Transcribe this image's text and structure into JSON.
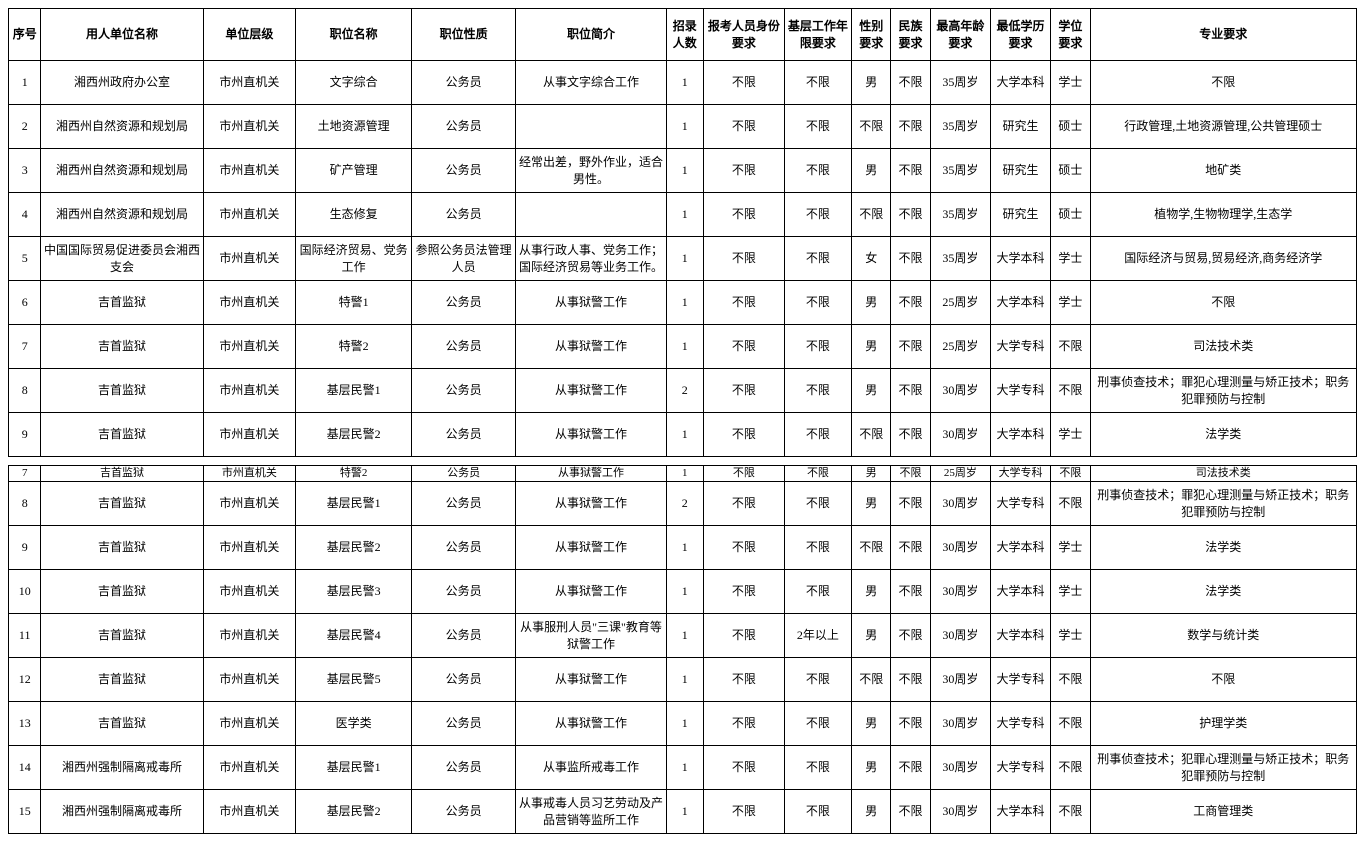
{
  "headers": {
    "seq": "序号",
    "unit": "用人单位名称",
    "level": "单位层级",
    "pos": "职位名称",
    "nat": "职位性质",
    "desc": "职位简介",
    "num": "招录人数",
    "app": "报考人员身份要求",
    "exp": "基层工作年限要求",
    "sex": "性别要求",
    "eth": "民族要求",
    "age": "最高年龄要求",
    "edu": "最低学历要求",
    "deg": "学位要求",
    "maj": "专业要求"
  },
  "tables": [
    {
      "rows": [
        {
          "seq": "1",
          "unit": "湘西州政府办公室",
          "level": "市州直机关",
          "pos": "文字综合",
          "nat": "公务员",
          "desc": "从事文字综合工作",
          "num": "1",
          "app": "不限",
          "exp": "不限",
          "sex": "男",
          "eth": "不限",
          "age": "35周岁",
          "edu": "大学本科",
          "deg": "学士",
          "maj": "不限"
        },
        {
          "seq": "2",
          "unit": "湘西州自然资源和规划局",
          "level": "市州直机关",
          "pos": "土地资源管理",
          "nat": "公务员",
          "desc": "",
          "num": "1",
          "app": "不限",
          "exp": "不限",
          "sex": "不限",
          "eth": "不限",
          "age": "35周岁",
          "edu": "研究生",
          "deg": "硕士",
          "maj": "行政管理,土地资源管理,公共管理硕士"
        },
        {
          "seq": "3",
          "unit": "湘西州自然资源和规划局",
          "level": "市州直机关",
          "pos": "矿产管理",
          "nat": "公务员",
          "desc": "经常出差，野外作业，适合男性。",
          "num": "1",
          "app": "不限",
          "exp": "不限",
          "sex": "男",
          "eth": "不限",
          "age": "35周岁",
          "edu": "研究生",
          "deg": "硕士",
          "maj": "地矿类"
        },
        {
          "seq": "4",
          "unit": "湘西州自然资源和规划局",
          "level": "市州直机关",
          "pos": "生态修复",
          "nat": "公务员",
          "desc": "",
          "num": "1",
          "app": "不限",
          "exp": "不限",
          "sex": "不限",
          "eth": "不限",
          "age": "35周岁",
          "edu": "研究生",
          "deg": "硕士",
          "maj": "植物学,生物物理学,生态学"
        },
        {
          "seq": "5",
          "unit": "中国国际贸易促进委员会湘西支会",
          "level": "市州直机关",
          "pos": "国际经济贸易、党务工作",
          "nat": "参照公务员法管理人员",
          "desc": "从事行政人事、党务工作；国际经济贸易等业务工作。",
          "num": "1",
          "app": "不限",
          "exp": "不限",
          "sex": "女",
          "eth": "不限",
          "age": "35周岁",
          "edu": "大学本科",
          "deg": "学士",
          "maj": "国际经济与贸易,贸易经济,商务经济学"
        },
        {
          "seq": "6",
          "unit": "吉首监狱",
          "level": "市州直机关",
          "pos": "特警1",
          "nat": "公务员",
          "desc": "从事狱警工作",
          "num": "1",
          "app": "不限",
          "exp": "不限",
          "sex": "男",
          "eth": "不限",
          "age": "25周岁",
          "edu": "大学本科",
          "deg": "学士",
          "maj": "不限"
        },
        {
          "seq": "7",
          "unit": "吉首监狱",
          "level": "市州直机关",
          "pos": "特警2",
          "nat": "公务员",
          "desc": "从事狱警工作",
          "num": "1",
          "app": "不限",
          "exp": "不限",
          "sex": "男",
          "eth": "不限",
          "age": "25周岁",
          "edu": "大学专科",
          "deg": "不限",
          "maj": "司法技术类"
        },
        {
          "seq": "8",
          "unit": "吉首监狱",
          "level": "市州直机关",
          "pos": "基层民警1",
          "nat": "公务员",
          "desc": "从事狱警工作",
          "num": "2",
          "app": "不限",
          "exp": "不限",
          "sex": "男",
          "eth": "不限",
          "age": "30周岁",
          "edu": "大学专科",
          "deg": "不限",
          "maj": "刑事侦查技术；罪犯心理测量与矫正技术；职务犯罪预防与控制"
        },
        {
          "seq": "9",
          "unit": "吉首监狱",
          "level": "市州直机关",
          "pos": "基层民警2",
          "nat": "公务员",
          "desc": "从事狱警工作",
          "num": "1",
          "app": "不限",
          "exp": "不限",
          "sex": "不限",
          "eth": "不限",
          "age": "30周岁",
          "edu": "大学本科",
          "deg": "学士",
          "maj": "法学类"
        }
      ]
    },
    {
      "cutoff": {
        "seq": "7",
        "unit": "吉首监狱",
        "level": "市州直机关",
        "pos": "特警2",
        "nat": "公务员",
        "desc": "从事狱警工作",
        "num": "1",
        "app": "不限",
        "exp": "不限",
        "sex": "男",
        "eth": "不限",
        "age": "25周岁",
        "edu": "大学专科",
        "deg": "不限",
        "maj": "司法技术类"
      },
      "rows": [
        {
          "seq": "8",
          "unit": "吉首监狱",
          "level": "市州直机关",
          "pos": "基层民警1",
          "nat": "公务员",
          "desc": "从事狱警工作",
          "num": "2",
          "app": "不限",
          "exp": "不限",
          "sex": "男",
          "eth": "不限",
          "age": "30周岁",
          "edu": "大学专科",
          "deg": "不限",
          "maj": "刑事侦查技术；罪犯心理测量与矫正技术；职务犯罪预防与控制"
        },
        {
          "seq": "9",
          "unit": "吉首监狱",
          "level": "市州直机关",
          "pos": "基层民警2",
          "nat": "公务员",
          "desc": "从事狱警工作",
          "num": "1",
          "app": "不限",
          "exp": "不限",
          "sex": "不限",
          "eth": "不限",
          "age": "30周岁",
          "edu": "大学本科",
          "deg": "学士",
          "maj": "法学类"
        },
        {
          "seq": "10",
          "unit": "吉首监狱",
          "level": "市州直机关",
          "pos": "基层民警3",
          "nat": "公务员",
          "desc": "从事狱警工作",
          "num": "1",
          "app": "不限",
          "exp": "不限",
          "sex": "男",
          "eth": "不限",
          "age": "30周岁",
          "edu": "大学本科",
          "deg": "学士",
          "maj": "法学类"
        },
        {
          "seq": "11",
          "unit": "吉首监狱",
          "level": "市州直机关",
          "pos": "基层民警4",
          "nat": "公务员",
          "desc": "从事服刑人员\"三课\"教育等狱警工作",
          "num": "1",
          "app": "不限",
          "exp": "2年以上",
          "sex": "男",
          "eth": "不限",
          "age": "30周岁",
          "edu": "大学本科",
          "deg": "学士",
          "maj": "数学与统计类"
        },
        {
          "seq": "12",
          "unit": "吉首监狱",
          "level": "市州直机关",
          "pos": "基层民警5",
          "nat": "公务员",
          "desc": "从事狱警工作",
          "num": "1",
          "app": "不限",
          "exp": "不限",
          "sex": "不限",
          "eth": "不限",
          "age": "30周岁",
          "edu": "大学专科",
          "deg": "不限",
          "maj": "不限"
        },
        {
          "seq": "13",
          "unit": "吉首监狱",
          "level": "市州直机关",
          "pos": "医学类",
          "nat": "公务员",
          "desc": "从事狱警工作",
          "num": "1",
          "app": "不限",
          "exp": "不限",
          "sex": "男",
          "eth": "不限",
          "age": "30周岁",
          "edu": "大学专科",
          "deg": "不限",
          "maj": "护理学类"
        },
        {
          "seq": "14",
          "unit": "湘西州强制隔离戒毒所",
          "level": "市州直机关",
          "pos": "基层民警1",
          "nat": "公务员",
          "desc": "从事监所戒毒工作",
          "num": "1",
          "app": "不限",
          "exp": "不限",
          "sex": "男",
          "eth": "不限",
          "age": "30周岁",
          "edu": "大学专科",
          "deg": "不限",
          "maj": "刑事侦查技术；犯罪心理测量与矫正技术；职务犯罪预防与控制"
        },
        {
          "seq": "15",
          "unit": "湘西州强制隔离戒毒所",
          "level": "市州直机关",
          "pos": "基层民警2",
          "nat": "公务员",
          "desc": "从事戒毒人员习艺劳动及产品营销等监所工作",
          "num": "1",
          "app": "不限",
          "exp": "不限",
          "sex": "男",
          "eth": "不限",
          "age": "30周岁",
          "edu": "大学本科",
          "deg": "不限",
          "maj": "工商管理类"
        }
      ]
    }
  ]
}
